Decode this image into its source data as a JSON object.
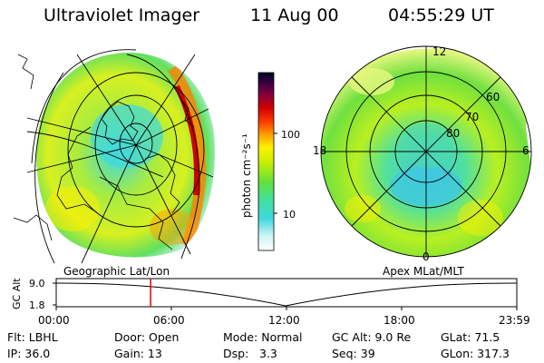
{
  "header": {
    "title": "Ultraviolet Imager",
    "date": "11 Aug 00",
    "time": "04:55:29 UT"
  },
  "colorbar": {
    "unit_label": "photon cm⁻²s⁻¹",
    "ticks": [
      "100",
      "10"
    ],
    "colors": [
      "#ffffff",
      "#d0f5f5",
      "#40d8e0",
      "#40e0a0",
      "#60e040",
      "#c8f000",
      "#fff000",
      "#ffa000",
      "#ff4000",
      "#d00000",
      "#800040",
      "#300040",
      "#000020"
    ]
  },
  "left_panel": {
    "caption": "Geographic Lat/Lon"
  },
  "right_panel": {
    "caption": "Apex MLat/MLT",
    "mlt_labels": {
      "top": "12",
      "left": "18",
      "right": "6",
      "bottom": "0"
    },
    "lat_labels": [
      "60",
      "70",
      "80"
    ]
  },
  "altitude_plot": {
    "ylabel": "GC Alt",
    "yticks": [
      "9.0",
      "1.8"
    ],
    "xticks": [
      "00:00",
      "06:00",
      "12:00",
      "18:00",
      "23:59"
    ],
    "current_time_marker_hour": 4.92,
    "marker_color": "#e00000"
  },
  "info": {
    "filter": "Flt: LBHL",
    "door": "Door: Open",
    "mode": "Mode: Normal",
    "gc_alt": "GC Alt: 9.0 Re",
    "glat": "GLat: 71.5",
    "ip": "IP: 36.0",
    "gain": "Gain: 13",
    "dsp_label": "Dsp:",
    "dsp_value": "3.3",
    "seq": "Seq: 39",
    "glon": "GLon: 317.3"
  }
}
